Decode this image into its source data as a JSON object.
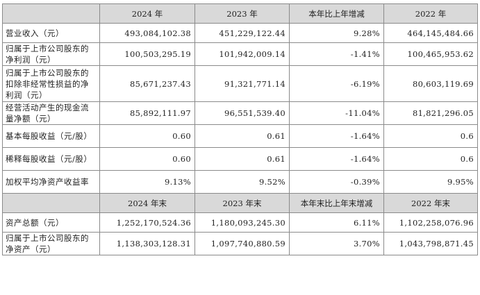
{
  "header1": [
    "2024 年",
    "2023 年",
    "本年比上年增减",
    "2022 年"
  ],
  "rows1": [
    {
      "label": "营业收入（元）",
      "v2024": "493,084,102.38",
      "v2023": "451,229,122.44",
      "change": "9.28%",
      "v2022": "464,145,484.66"
    },
    {
      "label": "归属于上市公司股东的净利润（元）",
      "v2024": "100,503,295.19",
      "v2023": "101,942,009.14",
      "change": "-1.41%",
      "v2022": "100,465,953.62"
    },
    {
      "label": "归属于上市公司股东的扣除非经常性损益的净利润（元）",
      "v2024": "85,671,237.43",
      "v2023": "91,321,771.14",
      "change": "-6.19%",
      "v2022": "80,603,119.69"
    },
    {
      "label": "经营活动产生的现金流量净额（元）",
      "v2024": "85,892,111.97",
      "v2023": "96,551,539.40",
      "change": "-11.04%",
      "v2022": "81,821,296.05"
    },
    {
      "label": "基本每股收益（元/股）",
      "v2024": "0.60",
      "v2023": "0.61",
      "change": "-1.64%",
      "v2022": "0.6"
    },
    {
      "label": "稀释每股收益（元/股）",
      "v2024": "0.60",
      "v2023": "0.61",
      "change": "-1.64%",
      "v2022": "0.6"
    },
    {
      "label": "加权平均净资产收益率",
      "v2024": "9.13%",
      "v2023": "9.52%",
      "change": "-0.39%",
      "v2022": "9.95%"
    }
  ],
  "header2": [
    "2024 年末",
    "2023 年末",
    "本年末比上年末增减",
    "2022 年末"
  ],
  "rows2": [
    {
      "label": "资产总额（元）",
      "v2024": "1,252,170,524.36",
      "v2023": "1,180,093,245.30",
      "change": "6.11%",
      "v2022": "1,102,258,076.96"
    },
    {
      "label": "归属于上市公司股东的净资产（元）",
      "v2024": "1,138,303,128.31",
      "v2023": "1,097,740,880.59",
      "change": "3.70%",
      "v2022": "1,043,798,871.45"
    }
  ]
}
